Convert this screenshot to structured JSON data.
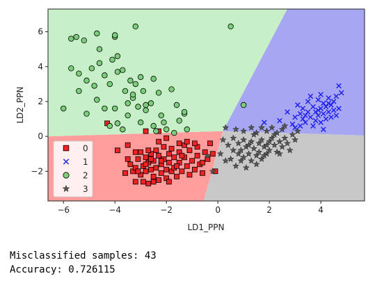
{
  "chart_data": {
    "type": "scatter",
    "title": "",
    "xlabel": "LD1_PPN",
    "ylabel": "LD2_PPN",
    "xlim": [
      -6.6,
      5.7
    ],
    "ylim": [
      -3.7,
      7.3
    ],
    "xticks": [
      -6,
      -4,
      -2,
      0,
      2,
      4
    ],
    "yticks": [
      -2,
      0,
      2,
      4,
      6
    ],
    "xtick_labels": [
      "−6",
      "−4",
      "−2",
      "0",
      "2",
      "4"
    ],
    "ytick_labels": [
      "−2",
      "0",
      "2",
      "4",
      "6"
    ],
    "grid": false,
    "legend_position": "lower-left",
    "decision_regions": [
      {
        "class": "2",
        "color": "#c8f0c8",
        "polygon": [
          [
            -6.6,
            0.0
          ],
          [
            0.2,
            0.3
          ],
          [
            2.7,
            7.3
          ],
          [
            -6.6,
            7.3
          ]
        ]
      },
      {
        "class": "1",
        "color": "#a6a6f2",
        "polygon": [
          [
            0.2,
            0.3
          ],
          [
            2.7,
            7.3
          ],
          [
            5.7,
            7.3
          ],
          [
            5.7,
            0.05
          ]
        ]
      },
      {
        "class": "0",
        "color": "#ff9d9d",
        "polygon": [
          [
            -6.6,
            0.0
          ],
          [
            0.2,
            0.3
          ],
          [
            -0.55,
            -3.7
          ],
          [
            -6.6,
            -3.7
          ]
        ]
      },
      {
        "class": "3",
        "color": "#c8c8c8",
        "polygon": [
          [
            0.2,
            0.3
          ],
          [
            5.7,
            0.05
          ],
          [
            5.7,
            -3.7
          ],
          [
            -0.55,
            -3.7
          ]
        ]
      }
    ],
    "series": [
      {
        "name": "0",
        "marker": "square",
        "color": "#ee2222",
        "points": [
          [
            -3.9,
            -0.8
          ],
          [
            -3.5,
            -1.3
          ],
          [
            -3.4,
            -1.6
          ],
          [
            -3.3,
            -2.0
          ],
          [
            -3.2,
            -1.8
          ],
          [
            -3.2,
            -2.6
          ],
          [
            -3.1,
            -1.3
          ],
          [
            -3.0,
            -2.2
          ],
          [
            -3.0,
            -0.9
          ],
          [
            -2.9,
            -1.7
          ],
          [
            -2.9,
            -2.6
          ],
          [
            -2.8,
            -1.2
          ],
          [
            -2.8,
            -2.0
          ],
          [
            -2.7,
            -1.5
          ],
          [
            -2.7,
            -2.7
          ],
          [
            -2.6,
            -1.0
          ],
          [
            -2.6,
            -1.9
          ],
          [
            -2.5,
            -2.3
          ],
          [
            -2.5,
            -1.4
          ],
          [
            -2.4,
            -0.8
          ],
          [
            -2.4,
            -1.8
          ],
          [
            -2.3,
            -2.5
          ],
          [
            -2.3,
            -1.1
          ],
          [
            -2.2,
            -1.6
          ],
          [
            -2.2,
            -2.1
          ],
          [
            -2.1,
            -0.6
          ],
          [
            -2.1,
            -1.3
          ],
          [
            -2.0,
            -1.9
          ],
          [
            -2.0,
            -2.4
          ],
          [
            -1.9,
            -1.0
          ],
          [
            -1.9,
            -1.5
          ],
          [
            -1.8,
            -2.0
          ],
          [
            -1.8,
            -0.7
          ],
          [
            -1.7,
            -1.2
          ],
          [
            -1.7,
            -1.8
          ],
          [
            -1.6,
            -2.3
          ],
          [
            -1.5,
            -0.9
          ],
          [
            -1.5,
            -1.5
          ],
          [
            -1.4,
            -2.0
          ],
          [
            -1.3,
            -0.5
          ],
          [
            -1.3,
            -1.2
          ],
          [
            -1.2,
            -1.7
          ],
          [
            -1.1,
            -2.2
          ],
          [
            -1.1,
            -0.8
          ],
          [
            -1.0,
            -1.4
          ],
          [
            -0.9,
            -1.9
          ],
          [
            -0.8,
            -0.6
          ],
          [
            -0.8,
            -1.1
          ],
          [
            -0.7,
            -1.6
          ],
          [
            -0.6,
            -2.1
          ],
          [
            -0.5,
            -0.9
          ],
          [
            -0.4,
            -1.3
          ],
          [
            -0.3,
            -0.4
          ],
          [
            -0.2,
            -1.0
          ],
          [
            -3.6,
            -2.1
          ],
          [
            -2.6,
            -1.3
          ],
          [
            -1.9,
            -2.6
          ],
          [
            -1.4,
            -1.1
          ],
          [
            -2.3,
            -0.3
          ],
          [
            -3.2,
            -0.9
          ],
          [
            -2.0,
            -0.1
          ],
          [
            -1.5,
            -0.4
          ],
          [
            -0.9,
            -0.4
          ],
          [
            -2.8,
            -1.6
          ],
          [
            -3.1,
            -2.0
          ],
          [
            -2.5,
            -2.6
          ],
          [
            -1.6,
            -1.7
          ],
          [
            -2.2,
            -1.4
          ],
          [
            -0.1,
            -2.0
          ],
          [
            -0.6,
            -1.5
          ],
          [
            -1.2,
            -0.3
          ],
          [
            -2.7,
            -0.8
          ],
          [
            -3.5,
            -0.5
          ],
          [
            -4.3,
            0.75
          ],
          [
            -2.8,
            0.3
          ],
          [
            -2.3,
            0.3
          ]
        ]
      },
      {
        "name": "1",
        "marker": "x",
        "color": "#2222ee",
        "points": [
          [
            1.8,
            0.8
          ],
          [
            2.4,
            0.9
          ],
          [
            2.7,
            1.4
          ],
          [
            2.9,
            0.7
          ],
          [
            3.0,
            1.1
          ],
          [
            3.1,
            1.8
          ],
          [
            3.2,
            1.3
          ],
          [
            3.3,
            1.0
          ],
          [
            3.3,
            1.6
          ],
          [
            3.4,
            0.8
          ],
          [
            3.5,
            1.4
          ],
          [
            3.5,
            2.0
          ],
          [
            3.6,
            1.1
          ],
          [
            3.7,
            1.7
          ],
          [
            3.8,
            0.9
          ],
          [
            3.8,
            1.4
          ],
          [
            3.9,
            2.1
          ],
          [
            3.9,
            1.2
          ],
          [
            4.0,
            1.6
          ],
          [
            4.0,
            0.8
          ],
          [
            4.1,
            1.9
          ],
          [
            4.1,
            1.3
          ],
          [
            4.2,
            1.0
          ],
          [
            4.2,
            1.7
          ],
          [
            4.3,
            2.2
          ],
          [
            4.3,
            1.4
          ],
          [
            4.4,
            1.8
          ],
          [
            4.4,
            1.1
          ],
          [
            4.5,
            2.0
          ],
          [
            4.5,
            1.5
          ],
          [
            4.6,
            1.2
          ],
          [
            4.6,
            2.3
          ],
          [
            4.7,
            1.6
          ],
          [
            4.7,
            2.9
          ],
          [
            4.8,
            2.5
          ],
          [
            3.6,
            2.3
          ],
          [
            3.2,
            0.6
          ],
          [
            4.0,
            2.4
          ],
          [
            3.7,
            0.6
          ],
          [
            4.1,
            0.4
          ],
          [
            3.0,
            0.5
          ],
          [
            4.3,
            1.9
          ],
          [
            3.9,
            1.5
          ],
          [
            3.4,
            1.2
          ]
        ]
      },
      {
        "name": "2",
        "marker": "circle",
        "color": "#7bcf7b",
        "points": [
          [
            -5.7,
            5.6
          ],
          [
            -5.5,
            5.7
          ],
          [
            -5.2,
            5.5
          ],
          [
            -4.7,
            5.9
          ],
          [
            -4.6,
            5.0
          ],
          [
            -4.0,
            5.7
          ],
          [
            -4.0,
            5.8
          ],
          [
            -3.2,
            6.3
          ],
          [
            0.5,
            6.3
          ],
          [
            -5.7,
            3.9
          ],
          [
            -5.4,
            3.6
          ],
          [
            -5.1,
            3.2
          ],
          [
            -4.9,
            3.9
          ],
          [
            -4.8,
            2.9
          ],
          [
            -4.6,
            4.2
          ],
          [
            -4.4,
            3.5
          ],
          [
            -4.2,
            3.0
          ],
          [
            -4.1,
            4.4
          ],
          [
            -3.9,
            3.7
          ],
          [
            -3.9,
            4.6
          ],
          [
            -3.7,
            3.8
          ],
          [
            -3.6,
            2.6
          ],
          [
            -3.5,
            1.9
          ],
          [
            -3.4,
            3.2
          ],
          [
            -3.3,
            2.2
          ],
          [
            -3.2,
            3.0
          ],
          [
            -3.0,
            3.4
          ],
          [
            -2.9,
            2.6
          ],
          [
            -2.8,
            1.5
          ],
          [
            -2.6,
            1.9
          ],
          [
            -2.5,
            3.3
          ],
          [
            -2.3,
            2.5
          ],
          [
            -2.2,
            1.2
          ],
          [
            -2.1,
            0.8
          ],
          [
            -1.8,
            2.7
          ],
          [
            -1.6,
            1.8
          ],
          [
            -1.5,
            0.9
          ],
          [
            -1.3,
            1.3
          ],
          [
            -1.2,
            0.4
          ],
          [
            -6.0,
            1.6
          ],
          [
            -5.4,
            2.6
          ],
          [
            -5.1,
            1.3
          ],
          [
            -4.7,
            2.1
          ],
          [
            -4.4,
            1.6
          ],
          [
            -4.2,
            0.6
          ],
          [
            -4.0,
            1.6
          ],
          [
            -3.7,
            0.4
          ],
          [
            -3.5,
            1.2
          ],
          [
            -3.3,
            2.4
          ],
          [
            -3.1,
            1.7
          ],
          [
            -3.0,
            0.8
          ],
          [
            -2.8,
            1.8
          ],
          [
            -2.5,
            0.6
          ],
          [
            -2.4,
            0.3
          ],
          [
            -2.0,
            0.4
          ],
          [
            -1.7,
            0.2
          ],
          [
            -1.3,
            1.4
          ],
          [
            1.0,
            1.8
          ],
          [
            -3.9,
            0.75
          ]
        ]
      },
      {
        "name": "3",
        "marker": "star",
        "color": "#555555",
        "points": [
          [
            0.3,
            0.5
          ],
          [
            0.7,
            0.4
          ],
          [
            1.0,
            0.3
          ],
          [
            1.3,
            0.5
          ],
          [
            1.5,
            0.2
          ],
          [
            1.7,
            0.5
          ],
          [
            1.9,
            0.3
          ],
          [
            2.1,
            0.5
          ],
          [
            2.3,
            0.2
          ],
          [
            2.5,
            0.4
          ],
          [
            0.2,
            -0.2
          ],
          [
            0.4,
            -0.5
          ],
          [
            0.6,
            -0.1
          ],
          [
            0.8,
            -0.4
          ],
          [
            0.9,
            -0.8
          ],
          [
            1.0,
            -0.2
          ],
          [
            1.1,
            -0.6
          ],
          [
            1.2,
            -1.0
          ],
          [
            1.3,
            -0.3
          ],
          [
            1.4,
            -0.7
          ],
          [
            1.5,
            -1.1
          ],
          [
            1.6,
            -0.4
          ],
          [
            1.6,
            -0.9
          ],
          [
            1.7,
            -0.2
          ],
          [
            1.8,
            -0.6
          ],
          [
            1.9,
            -1.0
          ],
          [
            2.0,
            -0.3
          ],
          [
            2.0,
            -0.8
          ],
          [
            2.1,
            -0.1
          ],
          [
            2.2,
            -0.5
          ],
          [
            2.3,
            -0.9
          ],
          [
            2.4,
            -0.3
          ],
          [
            2.5,
            -0.6
          ],
          [
            2.6,
            -0.1
          ],
          [
            2.7,
            -0.4
          ],
          [
            2.8,
            -0.8
          ],
          [
            2.9,
            0.1
          ],
          [
            3.0,
            -0.2
          ],
          [
            3.1,
            0.3
          ],
          [
            0.5,
            -1.3
          ],
          [
            0.7,
            -1.7
          ],
          [
            0.9,
            -1.4
          ],
          [
            1.1,
            -1.8
          ],
          [
            1.3,
            -1.4
          ],
          [
            1.5,
            -1.6
          ],
          [
            1.7,
            -1.3
          ],
          [
            0.1,
            -1.0
          ],
          [
            0.3,
            -1.4
          ],
          [
            -0.4,
            -1.1
          ],
          [
            -0.2,
            -2.0
          ],
          [
            0.8,
            -1.0
          ],
          [
            1.2,
            -0.5
          ],
          [
            1.9,
            -0.5
          ],
          [
            2.2,
            0.1
          ],
          [
            2.6,
            0.6
          ],
          [
            1.4,
            0.1
          ],
          [
            0.6,
            -0.8
          ],
          [
            1.8,
            -1.1
          ],
          [
            2.4,
            -1.0
          ],
          [
            1.0,
            -1.2
          ]
        ]
      }
    ]
  },
  "legend": {
    "entries": [
      {
        "label": "0",
        "marker": "square",
        "color": "#ee2222"
      },
      {
        "label": "1",
        "marker": "x",
        "color": "#2222ee"
      },
      {
        "label": "2",
        "marker": "circle",
        "color": "#7bcf7b"
      },
      {
        "label": "3",
        "marker": "star",
        "color": "#555555"
      }
    ]
  },
  "output": {
    "misclassified_text": "Misclassified samples: 43",
    "accuracy_text": "Accuracy: 0.726115"
  }
}
